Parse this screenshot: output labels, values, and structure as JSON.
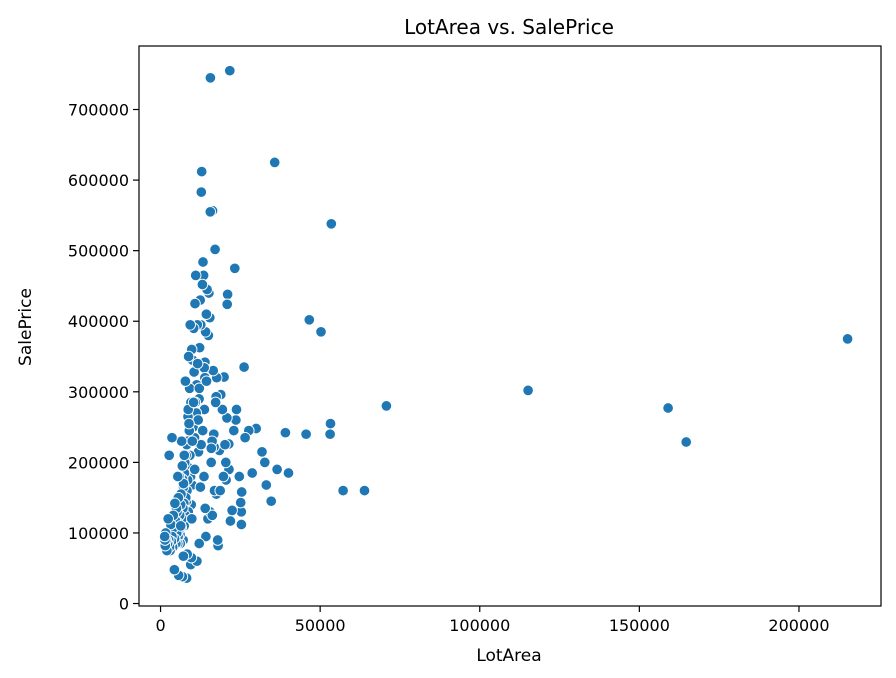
{
  "chart_data": {
    "type": "scatter",
    "title": "LotArea vs. SalePrice",
    "xlabel": "LotArea",
    "ylabel": "SalePrice",
    "xlim": [
      -6750,
      225700
    ],
    "ylim": [
      -3500,
      790000
    ],
    "xticks": [
      0,
      50000,
      100000,
      150000,
      200000
    ],
    "xtick_labels": [
      "0",
      "50000",
      "100000",
      "150000",
      "200000"
    ],
    "yticks": [
      0,
      100000,
      200000,
      300000,
      400000,
      500000,
      600000,
      700000
    ],
    "ytick_labels": [
      "0",
      "100000",
      "200000",
      "300000",
      "400000",
      "500000",
      "600000",
      "700000"
    ],
    "grid": false,
    "legend": "none",
    "point_color": "#1f77b4",
    "series": [
      {
        "x": [
          215245,
          164660,
          159000,
          115149,
          70761,
          63887,
          57200,
          53504,
          53227,
          53107,
          50271,
          46589,
          45600,
          40094,
          39104,
          36500,
          35760,
          34650,
          33120,
          32668,
          31770,
          29959,
          28698,
          27650,
          26178,
          25419,
          25339,
          25286,
          25095,
          24682,
          23595,
          23257,
          22950,
          22420,
          21872,
          21695,
          21453,
          21384,
          21000,
          20896,
          20781,
          20544,
          20431,
          19900,
          19690,
          19378,
          18890,
          18450,
          18030,
          17920,
          17600,
          17500,
          17423,
          17104,
          16905,
          16770,
          16669,
          16500,
          16269,
          16157,
          15870,
          15623,
          15593,
          15431,
          15138,
          15000,
          14836,
          14585,
          14375,
          14200,
          14115,
          13891,
          13751,
          13682,
          13500,
          13300,
          13108,
          12900,
          12772,
          12600,
          12435,
          12242,
          12090,
          11900,
          11700,
          11500,
          11340,
          11200,
          11025,
          10800,
          10650,
          10500,
          10400,
          10200,
          10000,
          9900,
          9750,
          9600,
          9500,
          9400,
          9300,
          9200,
          9100,
          9000,
          8900,
          8800,
          8700,
          8600,
          8500,
          8400,
          8300,
          8200,
          8100,
          8000,
          7900,
          7800,
          7700,
          7600,
          7500,
          7400,
          7300,
          7200,
          7100,
          7000,
          6900,
          6800,
          6700,
          6600,
          6500,
          6400,
          6300,
          6200,
          6100,
          6000,
          5900,
          5800,
          5700,
          5600,
          5500,
          5400,
          5300,
          5200,
          5100,
          5000,
          4800,
          4600,
          4400,
          4200,
          4000,
          3800,
          3600,
          3400,
          3200,
          3000,
          2800,
          2600,
          2400,
          2200,
          2000,
          1800,
          1600,
          1500,
          1400,
          1300,
          15500,
          16200,
          12500,
          13600,
          14000,
          11800,
          12700,
          10900,
          9800,
          8900,
          7200,
          6300,
          5400,
          4500,
          3600,
          2700,
          11600,
          13900,
          9950,
          8650,
          7450,
          10350,
          12150,
          14400,
          15900,
          17250,
          18700,
          20200,
          23800,
          26500,
          13200,
          12100,
          10700,
          9450,
          8150,
          6850,
          5650,
          4350,
          11400,
          9650,
          8350,
          7150
        ],
        "y": [
          375000,
          228950,
          277000,
          302000,
          280000,
          160000,
          160000,
          538000,
          255000,
          240000,
          385000,
          402000,
          240000,
          185000,
          242000,
          190000,
          625000,
          145000,
          168000,
          200000,
          215000,
          248000,
          185000,
          245000,
          335000,
          158000,
          112000,
          130000,
          143000,
          180000,
          260000,
          475000,
          245000,
          132000,
          117000,
          755000,
          190000,
          226000,
          438000,
          424000,
          263000,
          175000,
          200000,
          321000,
          180000,
          274900,
          296000,
          217000,
          82000,
          90000,
          320000,
          155000,
          293000,
          501837,
          160000,
          222000,
          240000,
          330000,
          556581,
          230000,
          200000,
          745000,
          555000,
          405000,
          440000,
          380000,
          120000,
          445000,
          410000,
          95000,
          385000,
          342000,
          275000,
          334000,
          465000,
          484000,
          452000,
          612000,
          583000,
          395000,
          430000,
          362500,
          290000,
          215000,
          260000,
          395000,
          310000,
          270000,
          465000,
          425000,
          235000,
          328000,
          390000,
          250000,
          345000,
          168000,
          360000,
          140000,
          285000,
          180000,
          395000,
          210000,
          305000,
          245000,
          192000,
          350000,
          130000,
          265000,
          175000,
          230000,
          160000,
          225000,
          145000,
          210000,
          150000,
          315000,
          125000,
          200000,
          185000,
          110000,
          142000,
          165000,
          90000,
          135000,
          176000,
          195000,
          120000,
          230000,
          108000,
          155000,
          140000,
          85000,
          98000,
          125000,
          180000,
          105000,
          112000,
          150000,
          95000,
          85000,
          115000,
          130000,
          100000,
          135000,
          85000,
          118000,
          92000,
          108000,
          125000,
          80000,
          95000,
          88000,
          112000,
          75000,
          80000,
          90000,
          120000,
          85000,
          75000,
          90000,
          100000,
          82000,
          90000,
          95000,
          130000,
          125000,
          165000,
          180000,
          135000,
          260000,
          225000,
          285000,
          120000,
          255000,
          170000,
          110000,
          180000,
          142000,
          235000,
          210000,
          340000,
          320000,
          230000,
          275000,
          210000,
          285000,
          305000,
          315000,
          220000,
          285000,
          160000,
          225000,
          275000,
          235000,
          245000,
          85000,
          190000,
          55000,
          36000,
          38000,
          40000,
          48000,
          60000,
          65000,
          70000,
          67000
        ]
      }
    ]
  }
}
